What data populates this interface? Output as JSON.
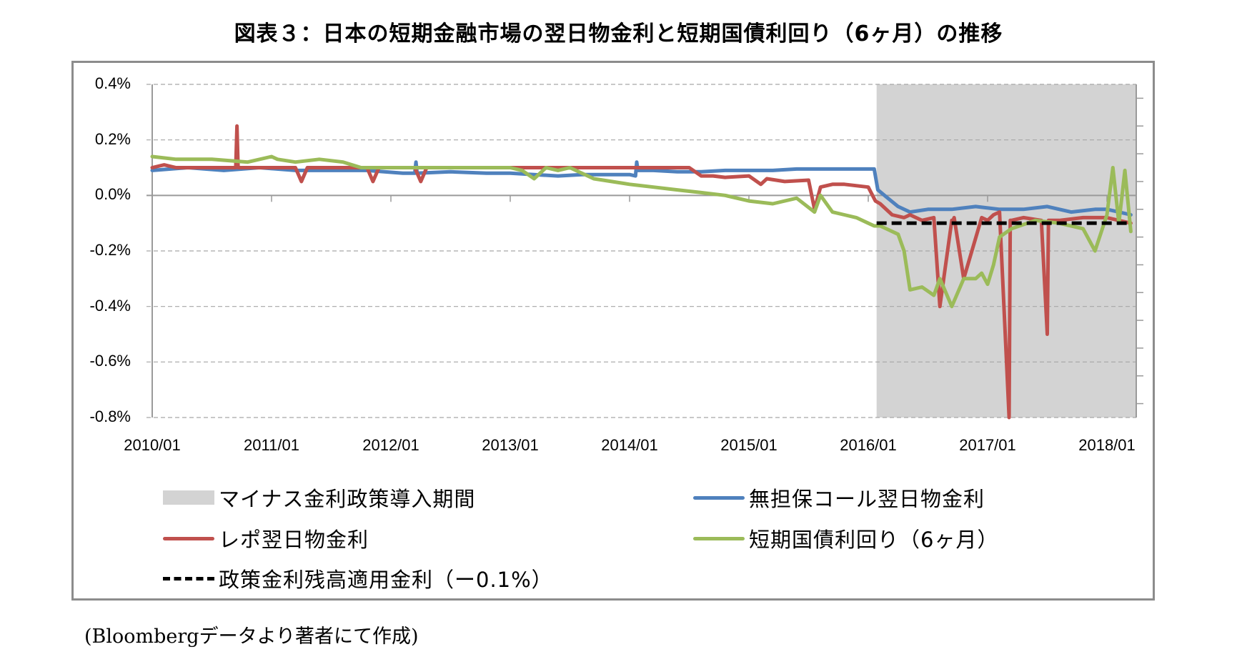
{
  "title": "図表３：日本の短期金融市場の翌日物金利と短期国債利回り（6ヶ月）の推移",
  "source_note": "(Bloombergデータより著者にて作成)",
  "legend": {
    "shaded": "マイナス金利政策導入期間",
    "repo": "レポ翌日物金利",
    "policy": "政策金利残高適用金利（ー0.1%）",
    "call": "無担保コール翌日物金利",
    "tbill": "短期国債利回り（6ヶ月）"
  },
  "colors": {
    "call": "#4f81bd",
    "repo": "#c0504d",
    "tbill": "#9bbb59",
    "policy": "#000000",
    "shaded": "#d3d3d3",
    "grid": "#a6a6a6",
    "frame": "#8c8c8c"
  },
  "chart_data": {
    "type": "line",
    "title": "図表３：日本の短期金融市場の翌日物金利と短期国債利回り（6ヶ月）の推移",
    "xlabel": "",
    "ylabel": "",
    "x_tick_labels": [
      "2010/01",
      "2011/01",
      "2012/01",
      "2013/01",
      "2014/01",
      "2015/01",
      "2016/01",
      "2017/01",
      "2018/01"
    ],
    "y_tick_labels": [
      "0.4%",
      "0.2%",
      "0.0%",
      "-0.2%",
      "-0.4%",
      "-0.6%",
      "-0.8%"
    ],
    "ylim": [
      -0.8,
      0.4
    ],
    "xlim": [
      2010.0,
      2018.25
    ],
    "grid": "horizontal dashed",
    "legend_position": "bottom",
    "shaded_region": {
      "label": "マイナス金利政策導入期間",
      "x_start": 2016.07,
      "x_end": 2018.25
    },
    "reference_line": {
      "label": "政策金利残高適用金利（ー0.1%）",
      "y": -0.1,
      "x_start": 2016.07,
      "x_end": 2018.25,
      "style": "dashed"
    },
    "series": [
      {
        "name": "無担保コール翌日物金利",
        "x": [
          2010.0,
          2010.3,
          2010.6,
          2010.9,
          2011.2,
          2011.5,
          2011.8,
          2012.1,
          2012.2,
          2012.21,
          2012.22,
          2012.5,
          2012.8,
          2013.0,
          2013.2,
          2013.4,
          2013.6,
          2013.8,
          2014.0,
          2014.05,
          2014.06,
          2014.07,
          2014.2,
          2014.4,
          2014.6,
          2014.8,
          2015.0,
          2015.2,
          2015.4,
          2015.6,
          2015.8,
          2016.0,
          2016.05,
          2016.08,
          2016.15,
          2016.25,
          2016.35,
          2016.5,
          2016.7,
          2016.9,
          2017.1,
          2017.3,
          2017.5,
          2017.7,
          2017.9,
          2018.0,
          2018.1,
          2018.2
        ],
        "values": [
          0.09,
          0.1,
          0.09,
          0.1,
          0.09,
          0.09,
          0.09,
          0.08,
          0.08,
          0.12,
          0.08,
          0.085,
          0.08,
          0.08,
          0.075,
          0.07,
          0.075,
          0.075,
          0.075,
          0.07,
          0.12,
          0.09,
          0.09,
          0.085,
          0.085,
          0.09,
          0.09,
          0.09,
          0.095,
          0.095,
          0.095,
          0.095,
          0.095,
          0.02,
          -0.005,
          -0.04,
          -0.06,
          -0.05,
          -0.05,
          -0.04,
          -0.05,
          -0.05,
          -0.04,
          -0.06,
          -0.05,
          -0.05,
          -0.06,
          -0.07
        ]
      },
      {
        "name": "レポ翌日物金利",
        "x": [
          2010.0,
          2010.1,
          2010.2,
          2010.5,
          2010.7,
          2010.71,
          2010.72,
          2010.9,
          2011.2,
          2011.25,
          2011.3,
          2011.5,
          2011.8,
          2011.85,
          2011.9,
          2012.1,
          2012.2,
          2012.25,
          2012.3,
          2012.6,
          2013.0,
          2013.2,
          2013.5,
          2014.0,
          2014.2,
          2014.3,
          2014.4,
          2014.5,
          2014.6,
          2014.7,
          2014.8,
          2015.0,
          2015.1,
          2015.15,
          2015.3,
          2015.5,
          2015.55,
          2015.6,
          2015.7,
          2015.8,
          2016.0,
          2016.06,
          2016.1,
          2016.2,
          2016.3,
          2016.35,
          2016.45,
          2016.55,
          2016.6,
          2016.7,
          2016.71,
          2016.72,
          2016.8,
          2016.95,
          2017.0,
          2017.05,
          2017.1,
          2017.18,
          2017.19,
          2017.2,
          2017.3,
          2017.45,
          2017.5,
          2017.51,
          2017.6,
          2017.8,
          2018.0,
          2018.1,
          2018.2
        ],
        "values": [
          0.1,
          0.11,
          0.1,
          0.1,
          0.1,
          0.25,
          0.1,
          0.1,
          0.1,
          0.05,
          0.1,
          0.1,
          0.1,
          0.05,
          0.1,
          0.1,
          0.1,
          0.05,
          0.1,
          0.1,
          0.1,
          0.1,
          0.1,
          0.1,
          0.1,
          0.1,
          0.1,
          0.1,
          0.07,
          0.07,
          0.065,
          0.07,
          0.04,
          0.06,
          0.05,
          0.055,
          -0.05,
          0.03,
          0.04,
          0.04,
          0.03,
          -0.02,
          -0.03,
          -0.07,
          -0.08,
          -0.07,
          -0.09,
          -0.08,
          -0.4,
          -0.09,
          -0.09,
          -0.08,
          -0.3,
          -0.08,
          -0.09,
          -0.07,
          -0.06,
          -0.8,
          -0.09,
          -0.09,
          -0.08,
          -0.09,
          -0.5,
          -0.09,
          -0.09,
          -0.08,
          -0.08,
          -0.09,
          -0.1
        ]
      },
      {
        "name": "短期国債利回り（6ヶ月）",
        "x": [
          2010.0,
          2010.2,
          2010.5,
          2010.8,
          2011.0,
          2011.05,
          2011.2,
          2011.4,
          2011.6,
          2011.75,
          2012.0,
          2012.5,
          2013.0,
          2013.1,
          2013.2,
          2013.3,
          2013.4,
          2013.5,
          2013.7,
          2013.85,
          2014.0,
          2014.2,
          2014.4,
          2014.6,
          2014.8,
          2015.0,
          2015.2,
          2015.4,
          2015.55,
          2015.6,
          2015.7,
          2015.8,
          2015.9,
          2016.0,
          2016.05,
          2016.1,
          2016.15,
          2016.25,
          2016.3,
          2016.35,
          2016.45,
          2016.55,
          2016.6,
          2016.65,
          2016.7,
          2016.8,
          2016.9,
          2016.95,
          2017.0,
          2017.05,
          2017.1,
          2017.2,
          2017.4,
          2017.6,
          2017.8,
          2017.9,
          2018.0,
          2018.05,
          2018.1,
          2018.15,
          2018.2
        ],
        "values": [
          0.14,
          0.13,
          0.13,
          0.12,
          0.14,
          0.13,
          0.12,
          0.13,
          0.12,
          0.1,
          0.1,
          0.1,
          0.1,
          0.09,
          0.06,
          0.1,
          0.09,
          0.1,
          0.06,
          0.05,
          0.04,
          0.03,
          0.02,
          0.01,
          0.0,
          -0.02,
          -0.03,
          -0.01,
          -0.06,
          0.0,
          -0.06,
          -0.07,
          -0.08,
          -0.1,
          -0.11,
          -0.11,
          -0.12,
          -0.14,
          -0.2,
          -0.34,
          -0.33,
          -0.36,
          -0.3,
          -0.35,
          -0.4,
          -0.3,
          -0.3,
          -0.28,
          -0.32,
          -0.25,
          -0.15,
          -0.12,
          -0.09,
          -0.1,
          -0.12,
          -0.2,
          -0.07,
          0.1,
          -0.1,
          0.09,
          -0.13
        ]
      }
    ]
  }
}
